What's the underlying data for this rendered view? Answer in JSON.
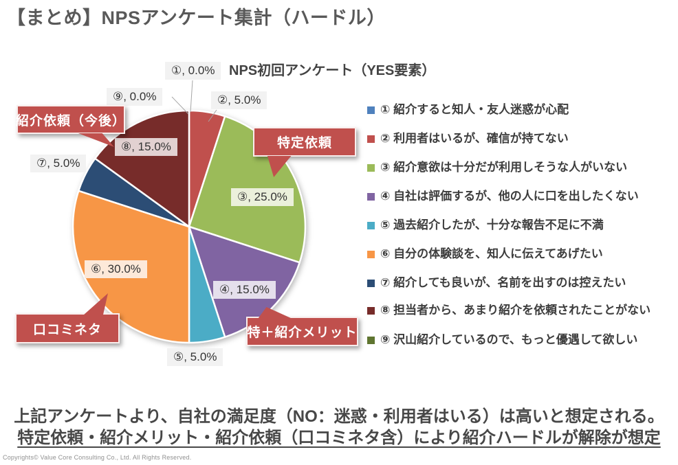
{
  "slide": {
    "title": "【まとめ】NPSアンケート集計（ハードル）",
    "summary": {
      "line1": "上記アンケートより、自社の満足度（NO：迷惑・利用者はいる）は高いと想定される。",
      "line2": "特定依頼・紹介メリット・紹介依頼（口コミネタ含）により紹介ハードルが解除が想定"
    },
    "copyright": "Copyrights© Value Core Consulting Co., Ltd.  All Rights Reserved."
  },
  "chart_data": {
    "type": "pie",
    "title": "NPS初回アンケート（YES要素）",
    "categories": [
      "①",
      "②",
      "③",
      "④",
      "⑤",
      "⑥",
      "⑦",
      "⑧",
      "⑨"
    ],
    "values": [
      0.0,
      5.0,
      25.0,
      15.0,
      5.0,
      30.0,
      5.0,
      15.0,
      0.0
    ],
    "unit": "percent",
    "point_labels": [
      "①, 0.0%",
      "②, 5.0%",
      "③, 25.0%",
      "④, 15.0%",
      "⑤, 5.0%",
      "⑥, 30.0%",
      "⑦, 5.0%",
      "⑧, 15.0%",
      "⑨, 0.0%"
    ],
    "slice_colors": [
      "#4F81BD",
      "#C0504D",
      "#9BBB59",
      "#8064A2",
      "#4BACC6",
      "#F79646",
      "#2C4D75",
      "#772C2A",
      "#5F7530"
    ],
    "label_backgrounds": [
      "#F2F2F2",
      "#F2F2F2",
      "#EBF0DB",
      "#E5DFEC",
      "#F2F2F2",
      "#FDE9D9",
      "#F2F2F2",
      "#E2D1D1",
      "#F2F2F2"
    ],
    "start_angle_deg": 0,
    "direction": "clockwise",
    "legend_position": "right",
    "grid": false
  },
  "legend": {
    "items": [
      {
        "label": "① 紹介すると知人・友人迷惑が心配",
        "color": "#4F81BD"
      },
      {
        "label": "② 利用者はいるが、確信が持てない",
        "color": "#C0504D"
      },
      {
        "label": "③ 紹介意欲は十分だが利用しそうな人がいない",
        "color": "#9BBB59"
      },
      {
        "label": "④ 自社は評価するが、他の人に口を出したくない",
        "color": "#8064A2"
      },
      {
        "label": "⑤ 過去紹介したが、十分な報告不足に不満",
        "color": "#4BACC6"
      },
      {
        "label": "⑥ 自分の体験談を、知人に伝えてあげたい",
        "color": "#F79646"
      },
      {
        "label": "⑦ 紹介しても良いが、名前を出すのは控えたい",
        "color": "#2C4D75"
      },
      {
        "label": "⑧ 担当者から、あまり紹介を依頼されたことがない",
        "color": "#772C2A"
      },
      {
        "label": "⑨ 沢山紹介しているので、もっと優遇して欲しい",
        "color": "#5F7530"
      }
    ]
  },
  "callouts": [
    {
      "label": "特定依頼"
    },
    {
      "label": "特＋紹介メリット"
    },
    {
      "label": "口コミネタ"
    },
    {
      "label": "紹介依頼（今後）"
    }
  ],
  "colors": {
    "callout_red": "#C0504D",
    "title_gray": "#595959",
    "leader_line": "#A6A6A6",
    "slice_border": "#FFFFFF"
  }
}
